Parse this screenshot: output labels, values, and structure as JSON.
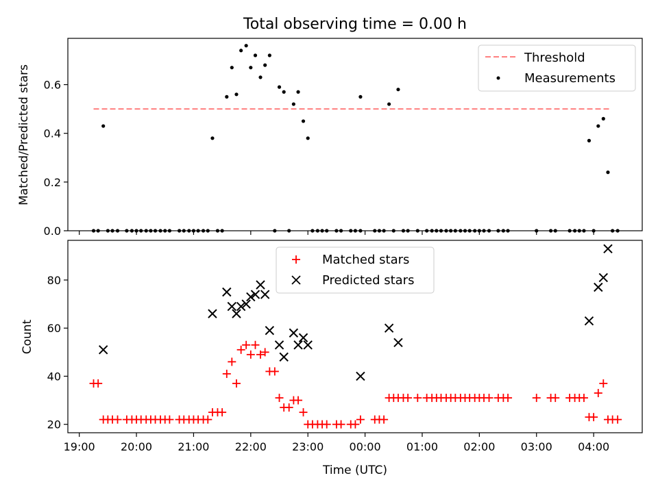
{
  "chart_data": [
    {
      "type": "scatter",
      "title": "Total observing time = 0.00 h",
      "ylabel": "Matched/Predicted stars",
      "xlabel": "",
      "xlim": [
        18.8,
        28.85
      ],
      "ylim": [
        0,
        0.79
      ],
      "yticks": [
        0.0,
        0.2,
        0.4,
        0.6
      ],
      "ytick_labels": [
        "0.0",
        "0.2",
        "0.4",
        "0.6"
      ],
      "xticks_hours": [
        19,
        20,
        21,
        22,
        23,
        24,
        25,
        26,
        27,
        28
      ],
      "show_xtick_labels": false,
      "grid": false,
      "legend": {
        "position": "top-right",
        "entries": [
          {
            "label": "Threshold",
            "kind": "dashed-line",
            "color": "#ff7f7f"
          },
          {
            "label": "Measurements",
            "kind": "dot",
            "color": "#000000"
          }
        ]
      },
      "threshold": {
        "value": 0.5,
        "x_start": 19.25,
        "x_end": 28.3,
        "color": "#ff7f7f"
      },
      "series": [
        {
          "name": "Measurements",
          "color": "#000000",
          "points": [
            [
              19.25,
              0
            ],
            [
              19.33,
              0
            ],
            [
              19.42,
              0.43
            ],
            [
              19.5,
              0
            ],
            [
              19.58,
              0
            ],
            [
              19.67,
              0
            ],
            [
              19.83,
              0
            ],
            [
              19.92,
              0
            ],
            [
              20.0,
              0
            ],
            [
              20.08,
              0
            ],
            [
              20.17,
              0
            ],
            [
              20.25,
              0
            ],
            [
              20.33,
              0
            ],
            [
              20.42,
              0
            ],
            [
              20.5,
              0
            ],
            [
              20.58,
              0
            ],
            [
              20.75,
              0
            ],
            [
              20.83,
              0
            ],
            [
              20.92,
              0
            ],
            [
              21.0,
              0
            ],
            [
              21.08,
              0
            ],
            [
              21.17,
              0
            ],
            [
              21.25,
              0
            ],
            [
              21.33,
              0.38
            ],
            [
              21.42,
              0
            ],
            [
              21.5,
              0
            ],
            [
              21.58,
              0.55
            ],
            [
              21.67,
              0.67
            ],
            [
              21.75,
              0.56
            ],
            [
              21.83,
              0.74
            ],
            [
              21.92,
              0.76
            ],
            [
              22.0,
              0.67
            ],
            [
              22.08,
              0.72
            ],
            [
              22.17,
              0.63
            ],
            [
              22.25,
              0.68
            ],
            [
              22.33,
              0.72
            ],
            [
              22.42,
              0
            ],
            [
              22.5,
              0.59
            ],
            [
              22.58,
              0.57
            ],
            [
              22.67,
              0
            ],
            [
              22.75,
              0.52
            ],
            [
              22.83,
              0.57
            ],
            [
              22.92,
              0.45
            ],
            [
              23.0,
              0.38
            ],
            [
              23.08,
              0
            ],
            [
              23.17,
              0
            ],
            [
              23.25,
              0
            ],
            [
              23.33,
              0
            ],
            [
              23.5,
              0
            ],
            [
              23.58,
              0
            ],
            [
              23.75,
              0
            ],
            [
              23.83,
              0
            ],
            [
              23.92,
              0
            ],
            [
              23.92,
              0.55
            ],
            [
              24.17,
              0
            ],
            [
              24.25,
              0
            ],
            [
              24.33,
              0
            ],
            [
              24.42,
              0.52
            ],
            [
              24.5,
              0
            ],
            [
              24.58,
              0.58
            ],
            [
              24.67,
              0
            ],
            [
              24.75,
              0
            ],
            [
              24.92,
              0
            ],
            [
              25.08,
              0
            ],
            [
              25.17,
              0
            ],
            [
              25.25,
              0
            ],
            [
              25.33,
              0
            ],
            [
              25.42,
              0
            ],
            [
              25.5,
              0
            ],
            [
              25.58,
              0
            ],
            [
              25.67,
              0
            ],
            [
              25.75,
              0
            ],
            [
              25.83,
              0
            ],
            [
              25.92,
              0
            ],
            [
              26.0,
              0
            ],
            [
              26.08,
              0
            ],
            [
              26.17,
              0
            ],
            [
              26.33,
              0
            ],
            [
              26.42,
              0
            ],
            [
              26.5,
              0
            ],
            [
              27.0,
              0
            ],
            [
              27.25,
              0
            ],
            [
              27.33,
              0
            ],
            [
              27.58,
              0
            ],
            [
              27.67,
              0
            ],
            [
              27.75,
              0
            ],
            [
              27.83,
              0
            ],
            [
              27.92,
              0.37
            ],
            [
              28.0,
              0
            ],
            [
              28.08,
              0.43
            ],
            [
              28.17,
              0.46
            ],
            [
              28.25,
              0.24
            ],
            [
              28.33,
              0
            ],
            [
              28.42,
              0
            ]
          ]
        }
      ]
    },
    {
      "type": "scatter",
      "title": "",
      "xlabel": "Time (UTC)",
      "ylabel": "Count",
      "xlim": [
        18.8,
        28.85
      ],
      "ylim": [
        16.5,
        96.5
      ],
      "yticks": [
        20,
        40,
        60,
        80
      ],
      "ytick_labels": [
        "20",
        "40",
        "60",
        "80"
      ],
      "xticks_hours": [
        19,
        20,
        21,
        22,
        23,
        24,
        25,
        26,
        27,
        28
      ],
      "xtick_labels": [
        "19:00",
        "20:00",
        "21:00",
        "22:00",
        "23:00",
        "00:00",
        "01:00",
        "02:00",
        "03:00",
        "04:00"
      ],
      "show_xtick_labels": true,
      "grid": false,
      "legend": {
        "position": "top-center",
        "entries": [
          {
            "label": "Matched stars",
            "kind": "plus",
            "color": "#ff0000"
          },
          {
            "label": "Predicted stars",
            "kind": "x",
            "color": "#000000"
          }
        ]
      },
      "series": [
        {
          "name": "Matched stars",
          "marker": "plus",
          "color": "#ff0000",
          "points": [
            [
              19.25,
              37
            ],
            [
              19.33,
              37
            ],
            [
              19.42,
              22
            ],
            [
              19.5,
              22
            ],
            [
              19.58,
              22
            ],
            [
              19.67,
              22
            ],
            [
              19.83,
              22
            ],
            [
              19.92,
              22
            ],
            [
              20.0,
              22
            ],
            [
              20.08,
              22
            ],
            [
              20.17,
              22
            ],
            [
              20.25,
              22
            ],
            [
              20.33,
              22
            ],
            [
              20.42,
              22
            ],
            [
              20.5,
              22
            ],
            [
              20.58,
              22
            ],
            [
              20.75,
              22
            ],
            [
              20.83,
              22
            ],
            [
              20.92,
              22
            ],
            [
              21.0,
              22
            ],
            [
              21.08,
              22
            ],
            [
              21.17,
              22
            ],
            [
              21.25,
              22
            ],
            [
              21.33,
              25
            ],
            [
              21.42,
              25
            ],
            [
              21.5,
              25
            ],
            [
              21.58,
              41
            ],
            [
              21.67,
              46
            ],
            [
              21.75,
              37
            ],
            [
              21.83,
              51
            ],
            [
              21.92,
              53
            ],
            [
              22.0,
              49
            ],
            [
              22.08,
              53
            ],
            [
              22.17,
              49
            ],
            [
              22.25,
              50
            ],
            [
              22.33,
              42
            ],
            [
              22.42,
              42
            ],
            [
              22.5,
              31
            ],
            [
              22.58,
              27
            ],
            [
              22.67,
              27
            ],
            [
              22.75,
              30
            ],
            [
              22.83,
              30
            ],
            [
              22.92,
              25
            ],
            [
              23.0,
              20
            ],
            [
              23.08,
              20
            ],
            [
              23.17,
              20
            ],
            [
              23.25,
              20
            ],
            [
              23.33,
              20
            ],
            [
              23.5,
              20
            ],
            [
              23.58,
              20
            ],
            [
              23.75,
              20
            ],
            [
              23.83,
              20
            ],
            [
              23.92,
              22
            ],
            [
              24.17,
              22
            ],
            [
              24.25,
              22
            ],
            [
              24.33,
              22
            ],
            [
              24.42,
              31
            ],
            [
              24.5,
              31
            ],
            [
              24.58,
              31
            ],
            [
              24.67,
              31
            ],
            [
              24.75,
              31
            ],
            [
              24.92,
              31
            ],
            [
              25.08,
              31
            ],
            [
              25.17,
              31
            ],
            [
              25.25,
              31
            ],
            [
              25.33,
              31
            ],
            [
              25.42,
              31
            ],
            [
              25.5,
              31
            ],
            [
              25.58,
              31
            ],
            [
              25.67,
              31
            ],
            [
              25.75,
              31
            ],
            [
              25.83,
              31
            ],
            [
              25.92,
              31
            ],
            [
              26.0,
              31
            ],
            [
              26.08,
              31
            ],
            [
              26.17,
              31
            ],
            [
              26.33,
              31
            ],
            [
              26.42,
              31
            ],
            [
              26.5,
              31
            ],
            [
              27.0,
              31
            ],
            [
              27.25,
              31
            ],
            [
              27.33,
              31
            ],
            [
              27.58,
              31
            ],
            [
              27.67,
              31
            ],
            [
              27.75,
              31
            ],
            [
              27.83,
              31
            ],
            [
              27.92,
              23
            ],
            [
              28.0,
              23
            ],
            [
              28.08,
              33
            ],
            [
              28.17,
              37
            ],
            [
              28.25,
              22
            ],
            [
              28.33,
              22
            ],
            [
              28.42,
              22
            ]
          ]
        },
        {
          "name": "Predicted stars",
          "marker": "x",
          "color": "#000000",
          "points": [
            [
              19.42,
              51
            ],
            [
              21.33,
              66
            ],
            [
              21.58,
              75
            ],
            [
              21.67,
              69
            ],
            [
              21.75,
              66
            ],
            [
              21.83,
              69
            ],
            [
              21.92,
              70
            ],
            [
              22.0,
              73
            ],
            [
              22.08,
              74
            ],
            [
              22.17,
              78
            ],
            [
              22.25,
              74
            ],
            [
              22.33,
              59
            ],
            [
              22.5,
              53
            ],
            [
              22.58,
              48
            ],
            [
              22.75,
              58
            ],
            [
              22.83,
              53
            ],
            [
              22.92,
              56
            ],
            [
              23.0,
              53
            ],
            [
              23.92,
              40
            ],
            [
              24.42,
              60
            ],
            [
              24.58,
              54
            ],
            [
              27.92,
              63
            ],
            [
              28.08,
              77
            ],
            [
              28.17,
              81
            ],
            [
              28.25,
              93
            ]
          ]
        }
      ]
    }
  ]
}
